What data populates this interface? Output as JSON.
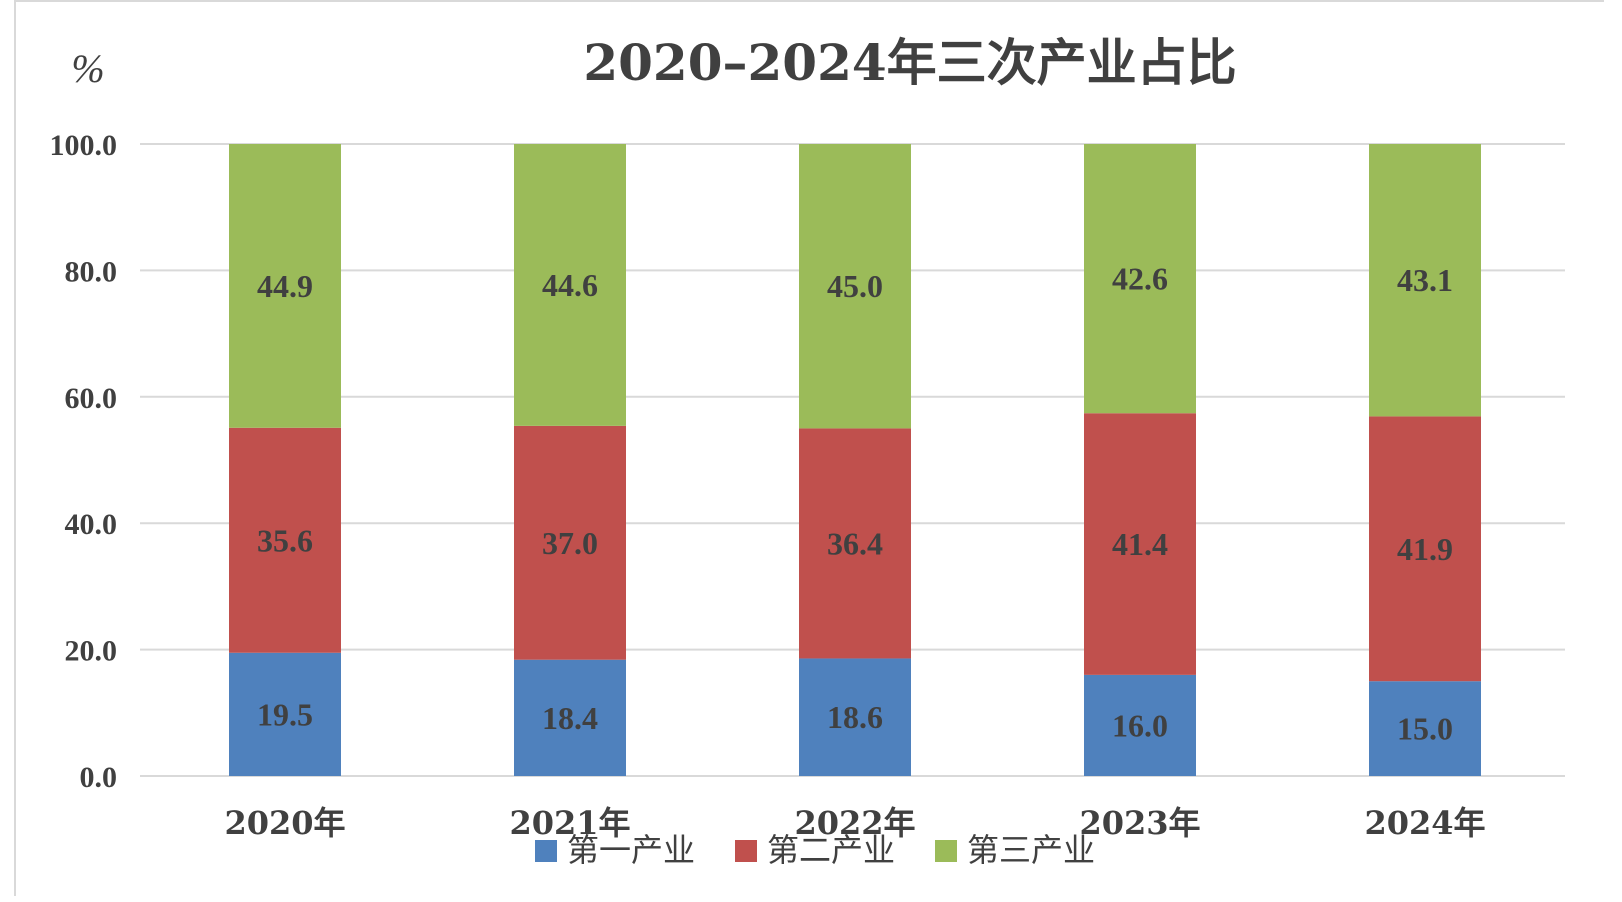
{
  "chart_data": {
    "type": "bar",
    "stacked": true,
    "title": "2020–2024年三次产业占比",
    "unit_label": "%",
    "categories": [
      "2020年",
      "2021年",
      "2022年",
      "2023年",
      "2024年"
    ],
    "ylim": [
      0,
      100
    ],
    "yticks": [
      "0.0",
      "20.0",
      "40.0",
      "60.0",
      "80.0",
      "100.0"
    ],
    "grid": true,
    "legend_position": "bottom",
    "series": [
      {
        "name": "第一产业",
        "color": "#4f81bd",
        "values": [
          19.5,
          18.4,
          18.6,
          16.0,
          15.0
        ],
        "labels": [
          "19.5",
          "18.4",
          "18.6",
          "16.0",
          "15.0"
        ]
      },
      {
        "name": "第二产业",
        "color": "#c0504d",
        "values": [
          35.6,
          37.0,
          36.4,
          41.4,
          41.9
        ],
        "labels": [
          "35.6",
          "37.0",
          "36.4",
          "41.4",
          "41.9"
        ]
      },
      {
        "name": "第三产业",
        "color": "#9bbb59",
        "values": [
          44.9,
          44.6,
          45.0,
          42.6,
          43.1
        ],
        "labels": [
          "44.9",
          "44.6",
          "45.0",
          "42.6",
          "43.1"
        ]
      }
    ]
  }
}
